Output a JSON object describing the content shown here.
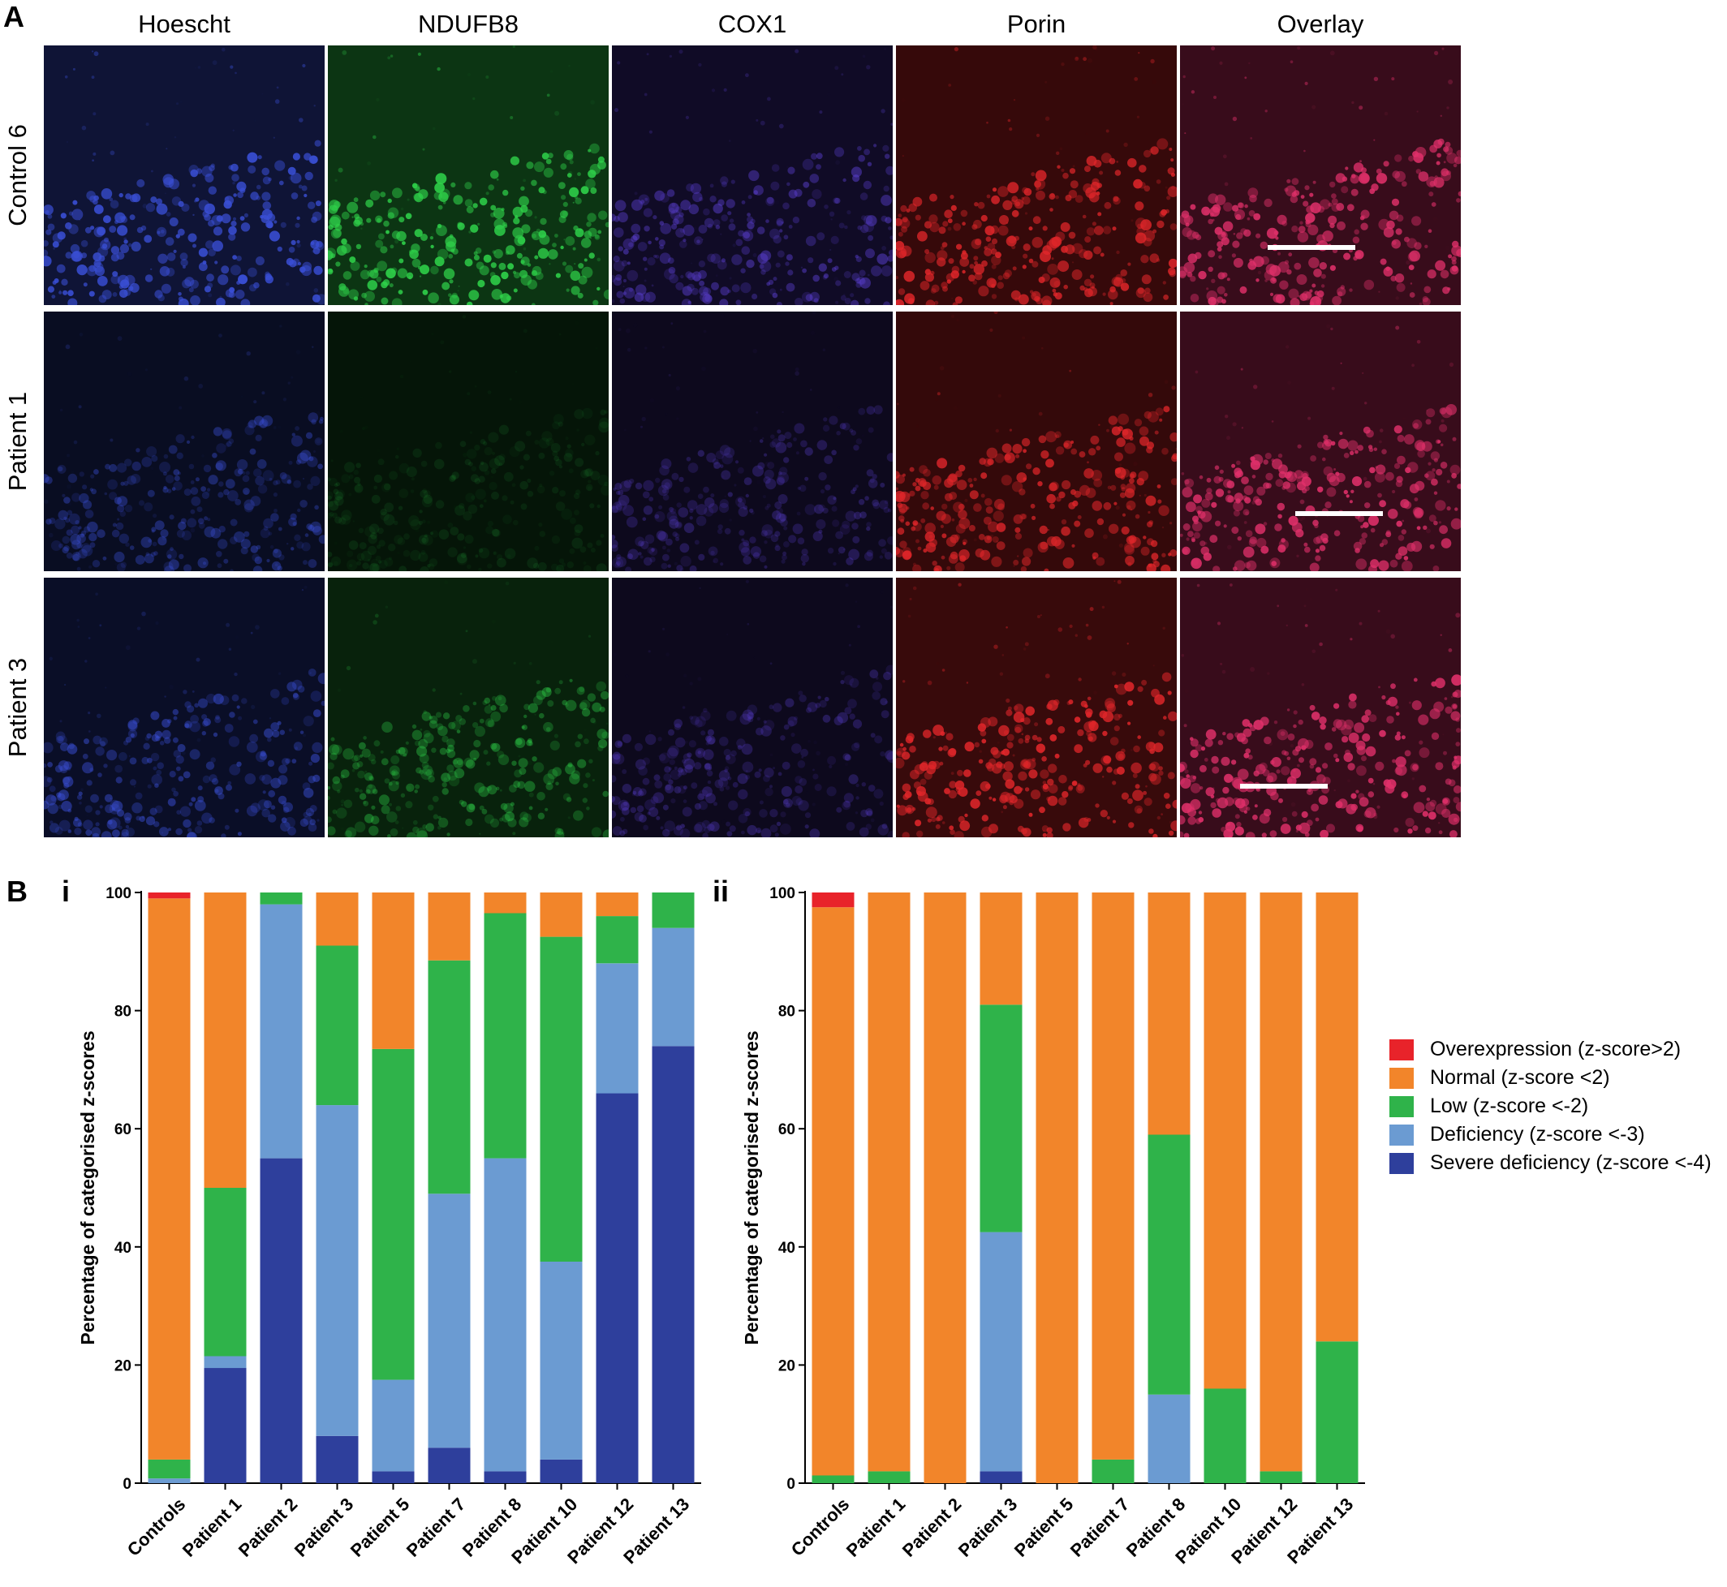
{
  "figure": {
    "panel_a_label": "A",
    "panel_b_label": "B",
    "sub_i_label": "i",
    "sub_ii_label": "ii",
    "columns": [
      "Hoescht",
      "NDUFB8",
      "COX1",
      "Porin",
      "Overlay"
    ],
    "rows": [
      "Control 6",
      "Patient 1",
      "Patient 3"
    ],
    "micrograph_style": {
      "Hoescht": {
        "color": "#3a4fd6",
        "intensity": [
          0.95,
          0.45,
          0.55
        ]
      },
      "NDUFB8": {
        "color": "#2fd24a",
        "intensity": [
          0.95,
          0.12,
          0.45
        ]
      },
      "COX1": {
        "color": "#5a3fd0",
        "intensity": [
          0.55,
          0.35,
          0.35
        ]
      },
      "Porin": {
        "color": "#e0262a",
        "intensity": [
          0.9,
          0.85,
          0.95
        ]
      },
      "Overlay": {
        "color": "#e0306a",
        "intensity": [
          0.95,
          0.95,
          0.95
        ]
      }
    }
  },
  "chart_data": [
    {
      "type": "bar",
      "stacked": true,
      "ylabel": "Percentage of categorised z-scores",
      "ylim": [
        0,
        100
      ],
      "yticks": [
        0,
        20,
        40,
        60,
        80,
        100
      ],
      "categories": [
        "Controls",
        "Patient 1",
        "Patient 2",
        "Patient 3",
        "Patient 5",
        "Patient 7",
        "Patient 8",
        "Patient 10",
        "Patient 12",
        "Patient 13"
      ],
      "series": [
        {
          "name": "Severe deficiency (z-score <-4)",
          "color": "#2e3f9c",
          "values": [
            0,
            19.5,
            55,
            8,
            2,
            6,
            2,
            4,
            66,
            74
          ]
        },
        {
          "name": "Deficiency (z-score <-3)",
          "color": "#6b9bd2",
          "values": [
            0.8,
            2,
            43,
            56,
            15.5,
            43,
            53,
            33.5,
            22,
            20
          ]
        },
        {
          "name": "Low (z-score <-2)",
          "color": "#2fb34a",
          "values": [
            3.2,
            28.5,
            2,
            27,
            56,
            39.5,
            41.5,
            55,
            8,
            6
          ]
        },
        {
          "name": "Normal (z-score <2)",
          "color": "#f2852a",
          "values": [
            95,
            50,
            0,
            9,
            26.5,
            11.5,
            3.5,
            7.5,
            4,
            0
          ]
        },
        {
          "name": "Overexpression (z-score>2)",
          "color": "#e8232a",
          "values": [
            1,
            0,
            0,
            0,
            0,
            0,
            0,
            0,
            0,
            0
          ]
        }
      ]
    },
    {
      "type": "bar",
      "stacked": true,
      "ylabel": "Percentage of categorised z-scores",
      "ylim": [
        0,
        100
      ],
      "yticks": [
        0,
        20,
        40,
        60,
        80,
        100
      ],
      "categories": [
        "Controls",
        "Patient 1",
        "Patient 2",
        "Patient 3",
        "Patient 5",
        "Patient 7",
        "Patient 8",
        "Patient 10",
        "Patient 12",
        "Patient 13"
      ],
      "series": [
        {
          "name": "Severe deficiency (z-score <-4)",
          "color": "#2e3f9c",
          "values": [
            0,
            0,
            0,
            2,
            0,
            0,
            0,
            0,
            0,
            0
          ]
        },
        {
          "name": "Deficiency (z-score <-3)",
          "color": "#6b9bd2",
          "values": [
            0,
            0,
            0,
            40.5,
            0,
            0,
            15,
            0,
            0,
            0
          ]
        },
        {
          "name": "Low (z-score <-2)",
          "color": "#2fb34a",
          "values": [
            1.3,
            2,
            0,
            38.5,
            0,
            4,
            44,
            16,
            2,
            24
          ]
        },
        {
          "name": "Normal (z-score <2)",
          "color": "#f2852a",
          "values": [
            96.2,
            98,
            100,
            19,
            100,
            96,
            41,
            84,
            98,
            76
          ]
        },
        {
          "name": "Overexpression (z-score>2)",
          "color": "#e8232a",
          "values": [
            2.5,
            0,
            0,
            0,
            0,
            0,
            0,
            0,
            0,
            0
          ]
        }
      ]
    }
  ],
  "legend": [
    {
      "label": "Overexpression (z-score>2)",
      "color": "#e8232a"
    },
    {
      "label": "Normal (z-score <2)",
      "color": "#f2852a"
    },
    {
      "label": "Low (z-score <-2)",
      "color": "#2fb34a"
    },
    {
      "label": "Deficiency (z-score <-3)",
      "color": "#6b9bd2"
    },
    {
      "label": "Severe deficiency (z-score <-4)",
      "color": "#2e3f9c"
    }
  ]
}
